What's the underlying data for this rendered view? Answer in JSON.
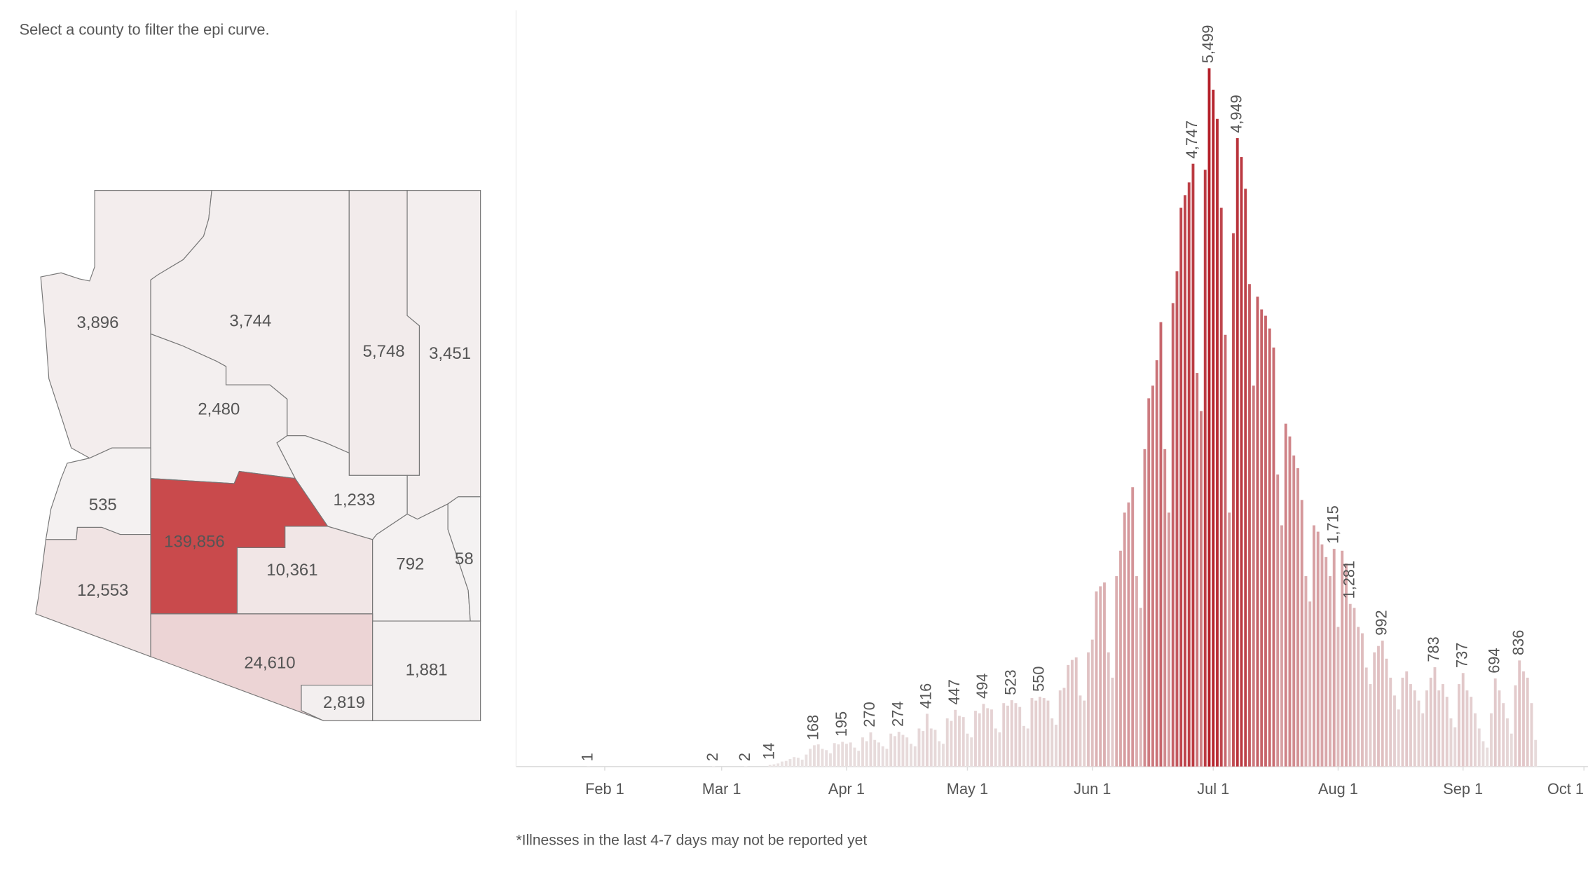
{
  "header": {
    "instruction": "Select a county to filter the epi curve."
  },
  "map": {
    "values": [
      3896,
      3744,
      5748,
      3451,
      2480,
      535,
      139856,
      10361,
      1233,
      792,
      58,
      12553,
      24610,
      2819,
      1881
    ],
    "value_labels": [
      "3,896",
      "3,744",
      "5,748",
      "3,451",
      "2,480",
      "535",
      "139,856",
      "10,361",
      "1,233",
      "792",
      "58",
      "12,553",
      "24,610",
      "2,819",
      "1,881"
    ],
    "color_scale": [
      "#f4f2f2",
      "#c94a4c"
    ]
  },
  "chart_data": {
    "type": "bar",
    "note": "*Illnesses in the last 4-7 days may not be reported yet",
    "x": [
      28,
      59,
      67,
      73,
      74,
      75,
      76,
      77,
      78,
      79,
      80,
      81,
      82,
      83,
      84,
      85,
      86,
      87,
      88,
      89,
      90,
      91,
      92,
      93,
      94,
      95,
      96,
      97,
      98,
      99,
      100,
      101,
      102,
      103,
      104,
      105,
      106,
      107,
      108,
      109,
      110,
      111,
      112,
      113,
      114,
      115,
      116,
      117,
      118,
      119,
      120,
      121,
      122,
      123,
      124,
      125,
      126,
      127,
      128,
      129,
      130,
      131,
      132,
      133,
      134,
      135,
      136,
      137,
      138,
      139,
      140,
      141,
      142,
      143,
      144,
      145,
      146,
      147,
      148,
      149,
      150,
      151,
      152,
      153,
      154,
      155,
      156,
      157,
      158,
      159,
      160,
      161,
      162,
      163,
      164,
      165,
      166,
      167,
      168,
      169,
      170,
      171,
      172,
      173,
      174,
      175,
      176,
      177,
      178,
      179,
      180,
      181,
      182,
      183,
      184,
      185,
      186,
      187,
      188,
      189,
      190,
      191,
      192,
      193,
      194,
      195,
      196,
      197,
      198,
      199,
      200,
      201,
      202,
      203,
      204,
      205,
      206,
      207,
      208,
      209,
      210,
      211,
      212,
      213,
      214,
      215,
      216,
      217,
      218,
      219,
      220,
      221,
      222,
      223,
      224,
      225,
      226,
      227,
      228,
      229,
      230,
      231,
      232,
      233,
      234,
      235,
      236,
      237,
      238,
      239,
      240,
      241,
      242,
      243,
      244,
      245,
      246,
      247,
      248,
      249,
      250,
      251,
      252,
      253,
      254,
      255,
      256,
      257,
      258,
      259,
      260,
      261,
      262,
      263
    ],
    "values": [
      1,
      2,
      2,
      14,
      18,
      25,
      40,
      45,
      60,
      75,
      70,
      55,
      95,
      140,
      168,
      175,
      140,
      130,
      105,
      185,
      175,
      195,
      180,
      190,
      150,
      125,
      230,
      200,
      270,
      210,
      190,
      160,
      140,
      260,
      240,
      274,
      250,
      230,
      180,
      160,
      300,
      280,
      416,
      300,
      290,
      200,
      180,
      380,
      360,
      447,
      400,
      390,
      260,
      230,
      440,
      420,
      494,
      460,
      450,
      300,
      270,
      500,
      480,
      523,
      500,
      470,
      320,
      300,
      540,
      520,
      550,
      540,
      520,
      380,
      330,
      600,
      620,
      800,
      840,
      860,
      560,
      520,
      900,
      1000,
      1380,
      1420,
      1450,
      900,
      700,
      1500,
      1700,
      2000,
      2080,
      2200,
      1500,
      1250,
      2500,
      2900,
      3000,
      3200,
      3500,
      2500,
      2000,
      3650,
      3900,
      4400,
      4500,
      4600,
      4747,
      3100,
      2800,
      4700,
      5499,
      5330,
      5100,
      4400,
      3400,
      2000,
      4200,
      4949,
      4800,
      4550,
      3800,
      3000,
      3700,
      3600,
      3550,
      3450,
      3300,
      2300,
      1900,
      2700,
      2600,
      2450,
      2350,
      2100,
      1500,
      1300,
      1900,
      1850,
      1750,
      1650,
      1500,
      1715,
      1100,
      1700,
      1600,
      1281,
      1250,
      1100,
      1050,
      780,
      650,
      900,
      950,
      992,
      850,
      700,
      560,
      450,
      700,
      750,
      650,
      600,
      520,
      420,
      600,
      700,
      783,
      600,
      650,
      550,
      380,
      310,
      650,
      737,
      600,
      550,
      420,
      300,
      200,
      150,
      420,
      694,
      600,
      500,
      380,
      260,
      640,
      836,
      750,
      700,
      500,
      210
    ],
    "value_labels": [
      "1",
      "2",
      "2",
      "14",
      null,
      null,
      null,
      null,
      null,
      null,
      null,
      null,
      null,
      null,
      "168",
      null,
      null,
      null,
      null,
      null,
      null,
      "195",
      null,
      null,
      null,
      null,
      null,
      null,
      "270",
      null,
      null,
      null,
      null,
      null,
      null,
      "274",
      null,
      null,
      null,
      null,
      null,
      null,
      "416",
      null,
      null,
      null,
      null,
      null,
      null,
      "447",
      null,
      null,
      null,
      null,
      null,
      null,
      "494",
      null,
      null,
      null,
      null,
      null,
      null,
      "523",
      null,
      null,
      null,
      null,
      null,
      null,
      "550",
      null,
      null,
      null,
      null,
      null,
      null,
      null,
      null,
      null,
      null,
      null,
      null,
      null,
      null,
      null,
      null,
      null,
      null,
      null,
      null,
      null,
      null,
      null,
      null,
      null,
      null,
      null,
      null,
      null,
      null,
      null,
      null,
      null,
      null,
      null,
      null,
      null,
      "4,747",
      null,
      null,
      null,
      "5,499",
      null,
      null,
      null,
      null,
      null,
      null,
      "4,949",
      null,
      null,
      null,
      null,
      null,
      null,
      null,
      null,
      null,
      null,
      null,
      null,
      null,
      null,
      null,
      null,
      null,
      null,
      null,
      null,
      null,
      null,
      null,
      "1,715",
      null,
      null,
      null,
      "1,281",
      null,
      null,
      null,
      null,
      null,
      null,
      null,
      "992",
      null,
      null,
      null,
      null,
      null,
      null,
      null,
      null,
      null,
      null,
      null,
      null,
      "783",
      null,
      null,
      null,
      null,
      null,
      null,
      "737",
      null,
      null,
      null,
      null,
      null,
      null,
      null,
      "694",
      null,
      null,
      null,
      null,
      null,
      "836",
      null,
      null,
      null,
      null
    ],
    "xlim": [
      10,
      276
    ],
    "xticks": [
      {
        "value": 32,
        "label": "Feb 1"
      },
      {
        "value": 61,
        "label": "Mar 1"
      },
      {
        "value": 92,
        "label": "Apr 1"
      },
      {
        "value": 122,
        "label": "May 1"
      },
      {
        "value": 153,
        "label": "Jun 1"
      },
      {
        "value": 183,
        "label": "Jul 1"
      },
      {
        "value": 214,
        "label": "Aug 1"
      },
      {
        "value": 245,
        "label": "Sep 1"
      },
      {
        "value": 275,
        "label": "Oct 1"
      }
    ],
    "ylim": [
      0,
      6000
    ],
    "color_scale": [
      "#e9e2e2",
      "#b41f28"
    ]
  }
}
